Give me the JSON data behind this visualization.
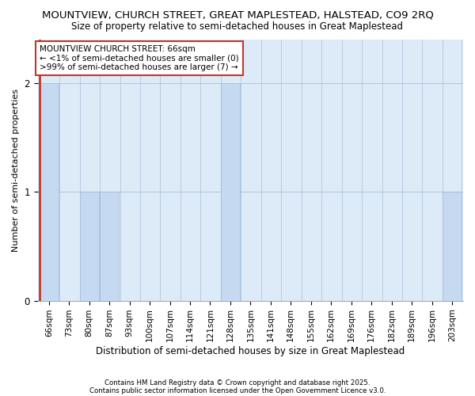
{
  "title1": "MOUNTVIEW, CHURCH STREET, GREAT MAPLESTEAD, HALSTEAD, CO9 2RQ",
  "title2": "Size of property relative to semi-detached houses in Great Maplestead",
  "xlabel": "Distribution of semi-detached houses by size in Great Maplestead",
  "ylabel": "Number of semi-detached properties",
  "categories": [
    "66sqm",
    "73sqm",
    "80sqm",
    "87sqm",
    "93sqm",
    "100sqm",
    "107sqm",
    "114sqm",
    "121sqm",
    "128sqm",
    "135sqm",
    "141sqm",
    "148sqm",
    "155sqm",
    "162sqm",
    "169sqm",
    "176sqm",
    "182sqm",
    "189sqm",
    "196sqm",
    "203sqm"
  ],
  "values": [
    2,
    0,
    1,
    1,
    0,
    0,
    0,
    0,
    0,
    2,
    0,
    0,
    0,
    0,
    0,
    0,
    0,
    0,
    0,
    0,
    1
  ],
  "highlight_index": 0,
  "bar_color": "#c5d9f0",
  "highlight_color": "#c5d9f0",
  "highlight_edge_color": "#c0392b",
  "background_color": "#ddeaf8",
  "annotation_text": "MOUNTVIEW CHURCH STREET: 66sqm\n← <1% of semi-detached houses are smaller (0)\n>99% of semi-detached houses are larger (7) →",
  "annotation_box_color": "#ffffff",
  "annotation_box_edge": "#c0392b",
  "footer1": "Contains HM Land Registry data © Crown copyright and database right 2025.",
  "footer2": "Contains public sector information licensed under the Open Government Licence v3.0.",
  "ylim": [
    0,
    2.4
  ],
  "yticks": [
    0,
    1,
    2
  ],
  "grid_color": "#b0c4de",
  "red_line_x": 0,
  "title1_fontsize": 9.5,
  "title2_fontsize": 8.5,
  "xlabel_fontsize": 8.5,
  "ylabel_fontsize": 8,
  "tick_fontsize": 7.5,
  "annotation_fontsize": 7.5
}
